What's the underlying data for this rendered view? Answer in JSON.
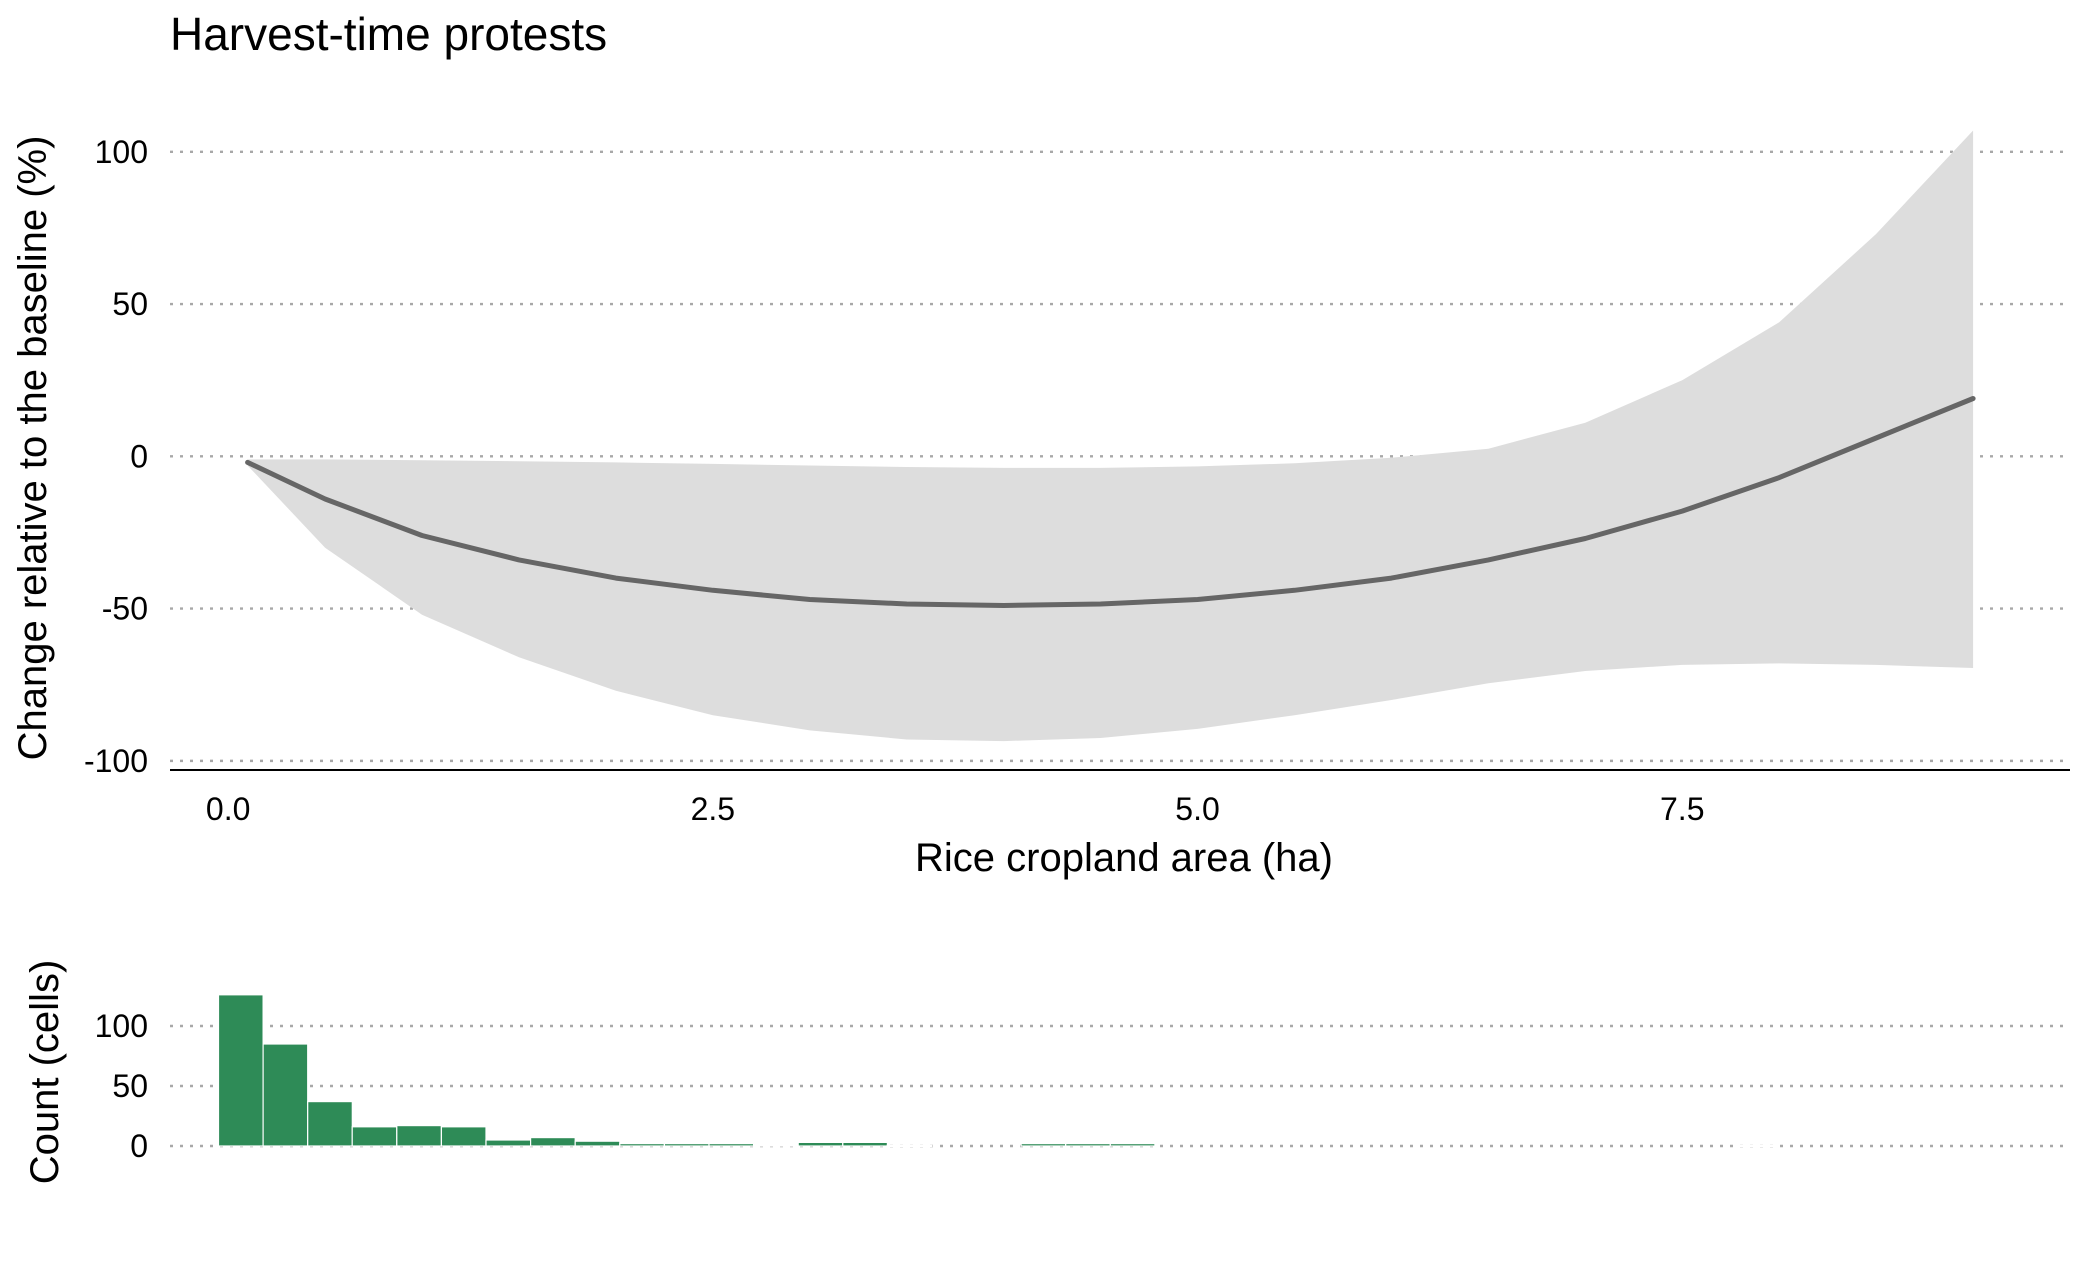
{
  "chart_data": [
    {
      "type": "line",
      "title": "Harvest-time protests",
      "xlabel": "Rice cropland area (ha)",
      "ylabel": "Change relative to the baseline (%)",
      "xlim": [
        -0.3,
        9.5
      ],
      "ylim": [
        -103,
        117
      ],
      "x_ticks": [
        "0.0",
        "2.5",
        "5.0",
        "7.5"
      ],
      "x_tick_values": [
        0.0,
        2.5,
        5.0,
        7.5
      ],
      "y_ticks": [
        "100",
        "50",
        "0",
        "-50",
        "-100"
      ],
      "y_tick_values": [
        100,
        50,
        0,
        -50,
        -100
      ],
      "grid": "horizontal dotted",
      "colors": {
        "line": "#666666",
        "band": "#dddddd"
      },
      "series": [
        {
          "x": [
            0.1,
            0.5,
            1.0,
            1.5,
            2.0,
            2.5,
            3.0,
            3.5,
            4.0,
            4.5,
            5.0,
            5.5,
            6.0,
            6.5,
            7.0,
            7.5,
            8.0,
            8.5,
            9.0
          ],
          "values": [
            -2,
            -14,
            -26,
            -34,
            -40,
            -44,
            -47,
            -48.5,
            -49,
            -48.5,
            -47,
            -44,
            -40,
            -34,
            -27,
            -18,
            -7,
            6,
            19
          ],
          "lower": [
            -3,
            -30,
            -52,
            -66,
            -77,
            -85,
            -90,
            -93,
            -93.5,
            -92.5,
            -89.5,
            -85,
            -80,
            -74.5,
            -70.5,
            -68.5,
            -68,
            -68.5,
            -69.5
          ],
          "upper": [
            -1,
            -1,
            -1.3,
            -1.6,
            -2,
            -2.5,
            -3,
            -3.5,
            -3.8,
            -3.8,
            -3.3,
            -2.3,
            -0.5,
            2.5,
            11,
            25,
            44,
            73,
            107
          ]
        }
      ]
    },
    {
      "type": "bar",
      "ylabel": "Count (cells)",
      "ylim": [
        0,
        140
      ],
      "y_ticks": [
        "100",
        "50",
        "0"
      ],
      "y_tick_values": [
        100,
        50,
        0
      ],
      "bin_width": 0.23,
      "bin_start": -0.05,
      "colors": {
        "bar": "#2e8b57"
      },
      "values": [
        126,
        85,
        37,
        16,
        17,
        16,
        5,
        7,
        4,
        2,
        2,
        2,
        1,
        3,
        3,
        0.5,
        0,
        0,
        2,
        2,
        2,
        0,
        0,
        0,
        0,
        0,
        0,
        0,
        0,
        0,
        0,
        0,
        0,
        0,
        0.5,
        0,
        0,
        0,
        0,
        0,
        0,
        0,
        0,
        0,
        0,
        0,
        0,
        0,
        0,
        0,
        0,
        0,
        0,
        0,
        0,
        0,
        0,
        0,
        0
      ]
    }
  ]
}
